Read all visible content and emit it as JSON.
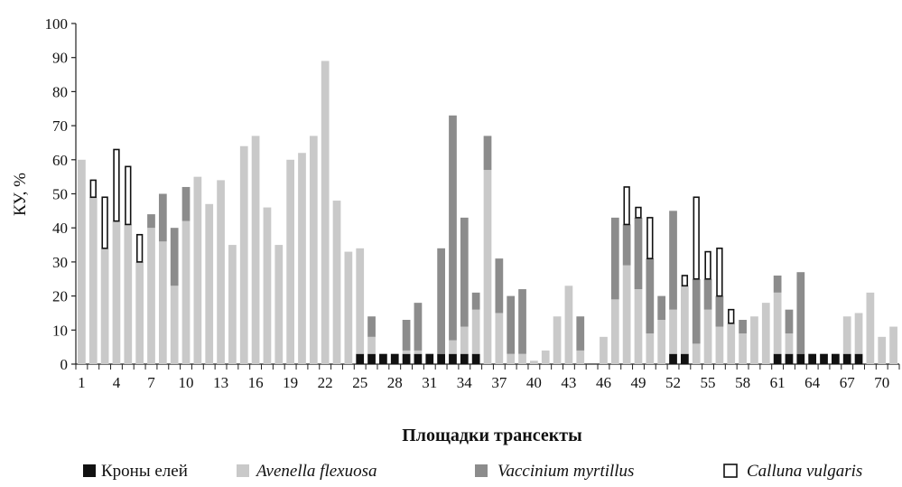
{
  "colors": {
    "crowns": "#111111",
    "avenella": "#c9c9c9",
    "vaccinium": "#8c8c8c",
    "calluna": "#ffffff",
    "calluna_stroke": "#111111"
  },
  "chart_data": {
    "type": "bar",
    "stacked": true,
    "ylabel": "КУ, %",
    "xlabel": "Площадки трансекты",
    "ylim": [
      0,
      100
    ],
    "yticks": [
      0,
      10,
      20,
      30,
      40,
      50,
      60,
      70,
      80,
      90,
      100
    ],
    "xtick_labels": [
      "1",
      "4",
      "7",
      "10",
      "13",
      "16",
      "19",
      "22",
      "25",
      "28",
      "31",
      "34",
      "37",
      "40",
      "43",
      "46",
      "49",
      "52",
      "55",
      "58",
      "61",
      "64",
      "67",
      "70"
    ],
    "categories": [
      1,
      2,
      3,
      4,
      5,
      6,
      7,
      8,
      9,
      10,
      11,
      12,
      13,
      14,
      15,
      16,
      17,
      18,
      19,
      20,
      21,
      22,
      23,
      24,
      25,
      26,
      27,
      28,
      29,
      30,
      31,
      32,
      33,
      34,
      35,
      36,
      37,
      38,
      39,
      40,
      41,
      42,
      43,
      44,
      45,
      46,
      47,
      48,
      49,
      50,
      51,
      52,
      53,
      54,
      55,
      56,
      57,
      58,
      59,
      60,
      61,
      62,
      63,
      64,
      65,
      66,
      67,
      68,
      69,
      70,
      71
    ],
    "legend_position": "bottom",
    "series": [
      {
        "name": "Кроны елей",
        "color_key": "crowns",
        "values": [
          0,
          0,
          0,
          0,
          0,
          0,
          0,
          0,
          0,
          0,
          0,
          0,
          0,
          0,
          0,
          0,
          0,
          0,
          0,
          0,
          0,
          0,
          0,
          0,
          3,
          3,
          3,
          3,
          3,
          3,
          3,
          3,
          3,
          3,
          3,
          0,
          0,
          0,
          0,
          0,
          0,
          0,
          0,
          0,
          0,
          0,
          0,
          0,
          0,
          0,
          0,
          3,
          3,
          0,
          0,
          0,
          0,
          0,
          0,
          0,
          3,
          3,
          3,
          3,
          3,
          3,
          3,
          3,
          0,
          0,
          0
        ]
      },
      {
        "name": "Avenella flexuosa",
        "color_key": "avenella",
        "values": [
          60,
          49,
          34,
          42,
          41,
          30,
          40,
          36,
          23,
          42,
          55,
          47,
          54,
          35,
          64,
          67,
          46,
          35,
          60,
          62,
          67,
          89,
          48,
          33,
          31,
          5,
          0,
          0,
          1,
          1,
          0,
          0,
          4,
          8,
          13,
          57,
          15,
          3,
          3,
          1,
          4,
          14,
          23,
          4,
          0,
          8,
          19,
          29,
          22,
          9,
          13,
          13,
          20,
          6,
          16,
          11,
          12,
          9,
          14,
          18,
          18,
          6,
          0,
          0,
          0,
          0,
          11,
          12,
          21,
          8,
          11
        ]
      },
      {
        "name": "Vaccinium myrtillus",
        "color_key": "vaccinium",
        "values": [
          0,
          0,
          0,
          0,
          0,
          0,
          4,
          14,
          17,
          10,
          0,
          0,
          0,
          0,
          0,
          0,
          0,
          0,
          0,
          0,
          0,
          0,
          0,
          0,
          0,
          6,
          0,
          0,
          9,
          14,
          0,
          31,
          66,
          32,
          5,
          10,
          16,
          17,
          19,
          0,
          0,
          0,
          0,
          10,
          0,
          0,
          24,
          12,
          21,
          22,
          7,
          29,
          0,
          19,
          9,
          9,
          0,
          4,
          0,
          0,
          5,
          7,
          24,
          0,
          0,
          0,
          0,
          0,
          0,
          0,
          0
        ]
      },
      {
        "name": "Calluna vulgaris",
        "color_key": "calluna",
        "values": [
          0,
          5,
          15,
          21,
          17,
          8,
          0,
          0,
          0,
          0,
          0,
          0,
          0,
          0,
          0,
          0,
          0,
          0,
          0,
          0,
          0,
          0,
          0,
          0,
          0,
          0,
          0,
          0,
          0,
          0,
          0,
          0,
          0,
          0,
          0,
          0,
          0,
          0,
          0,
          0,
          0,
          0,
          0,
          0,
          0,
          0,
          0,
          11,
          3,
          12,
          0,
          0,
          3,
          24,
          8,
          14,
          4,
          0,
          0,
          0,
          0,
          0,
          0,
          0,
          0,
          0,
          0,
          0,
          0,
          0,
          0
        ]
      }
    ]
  }
}
